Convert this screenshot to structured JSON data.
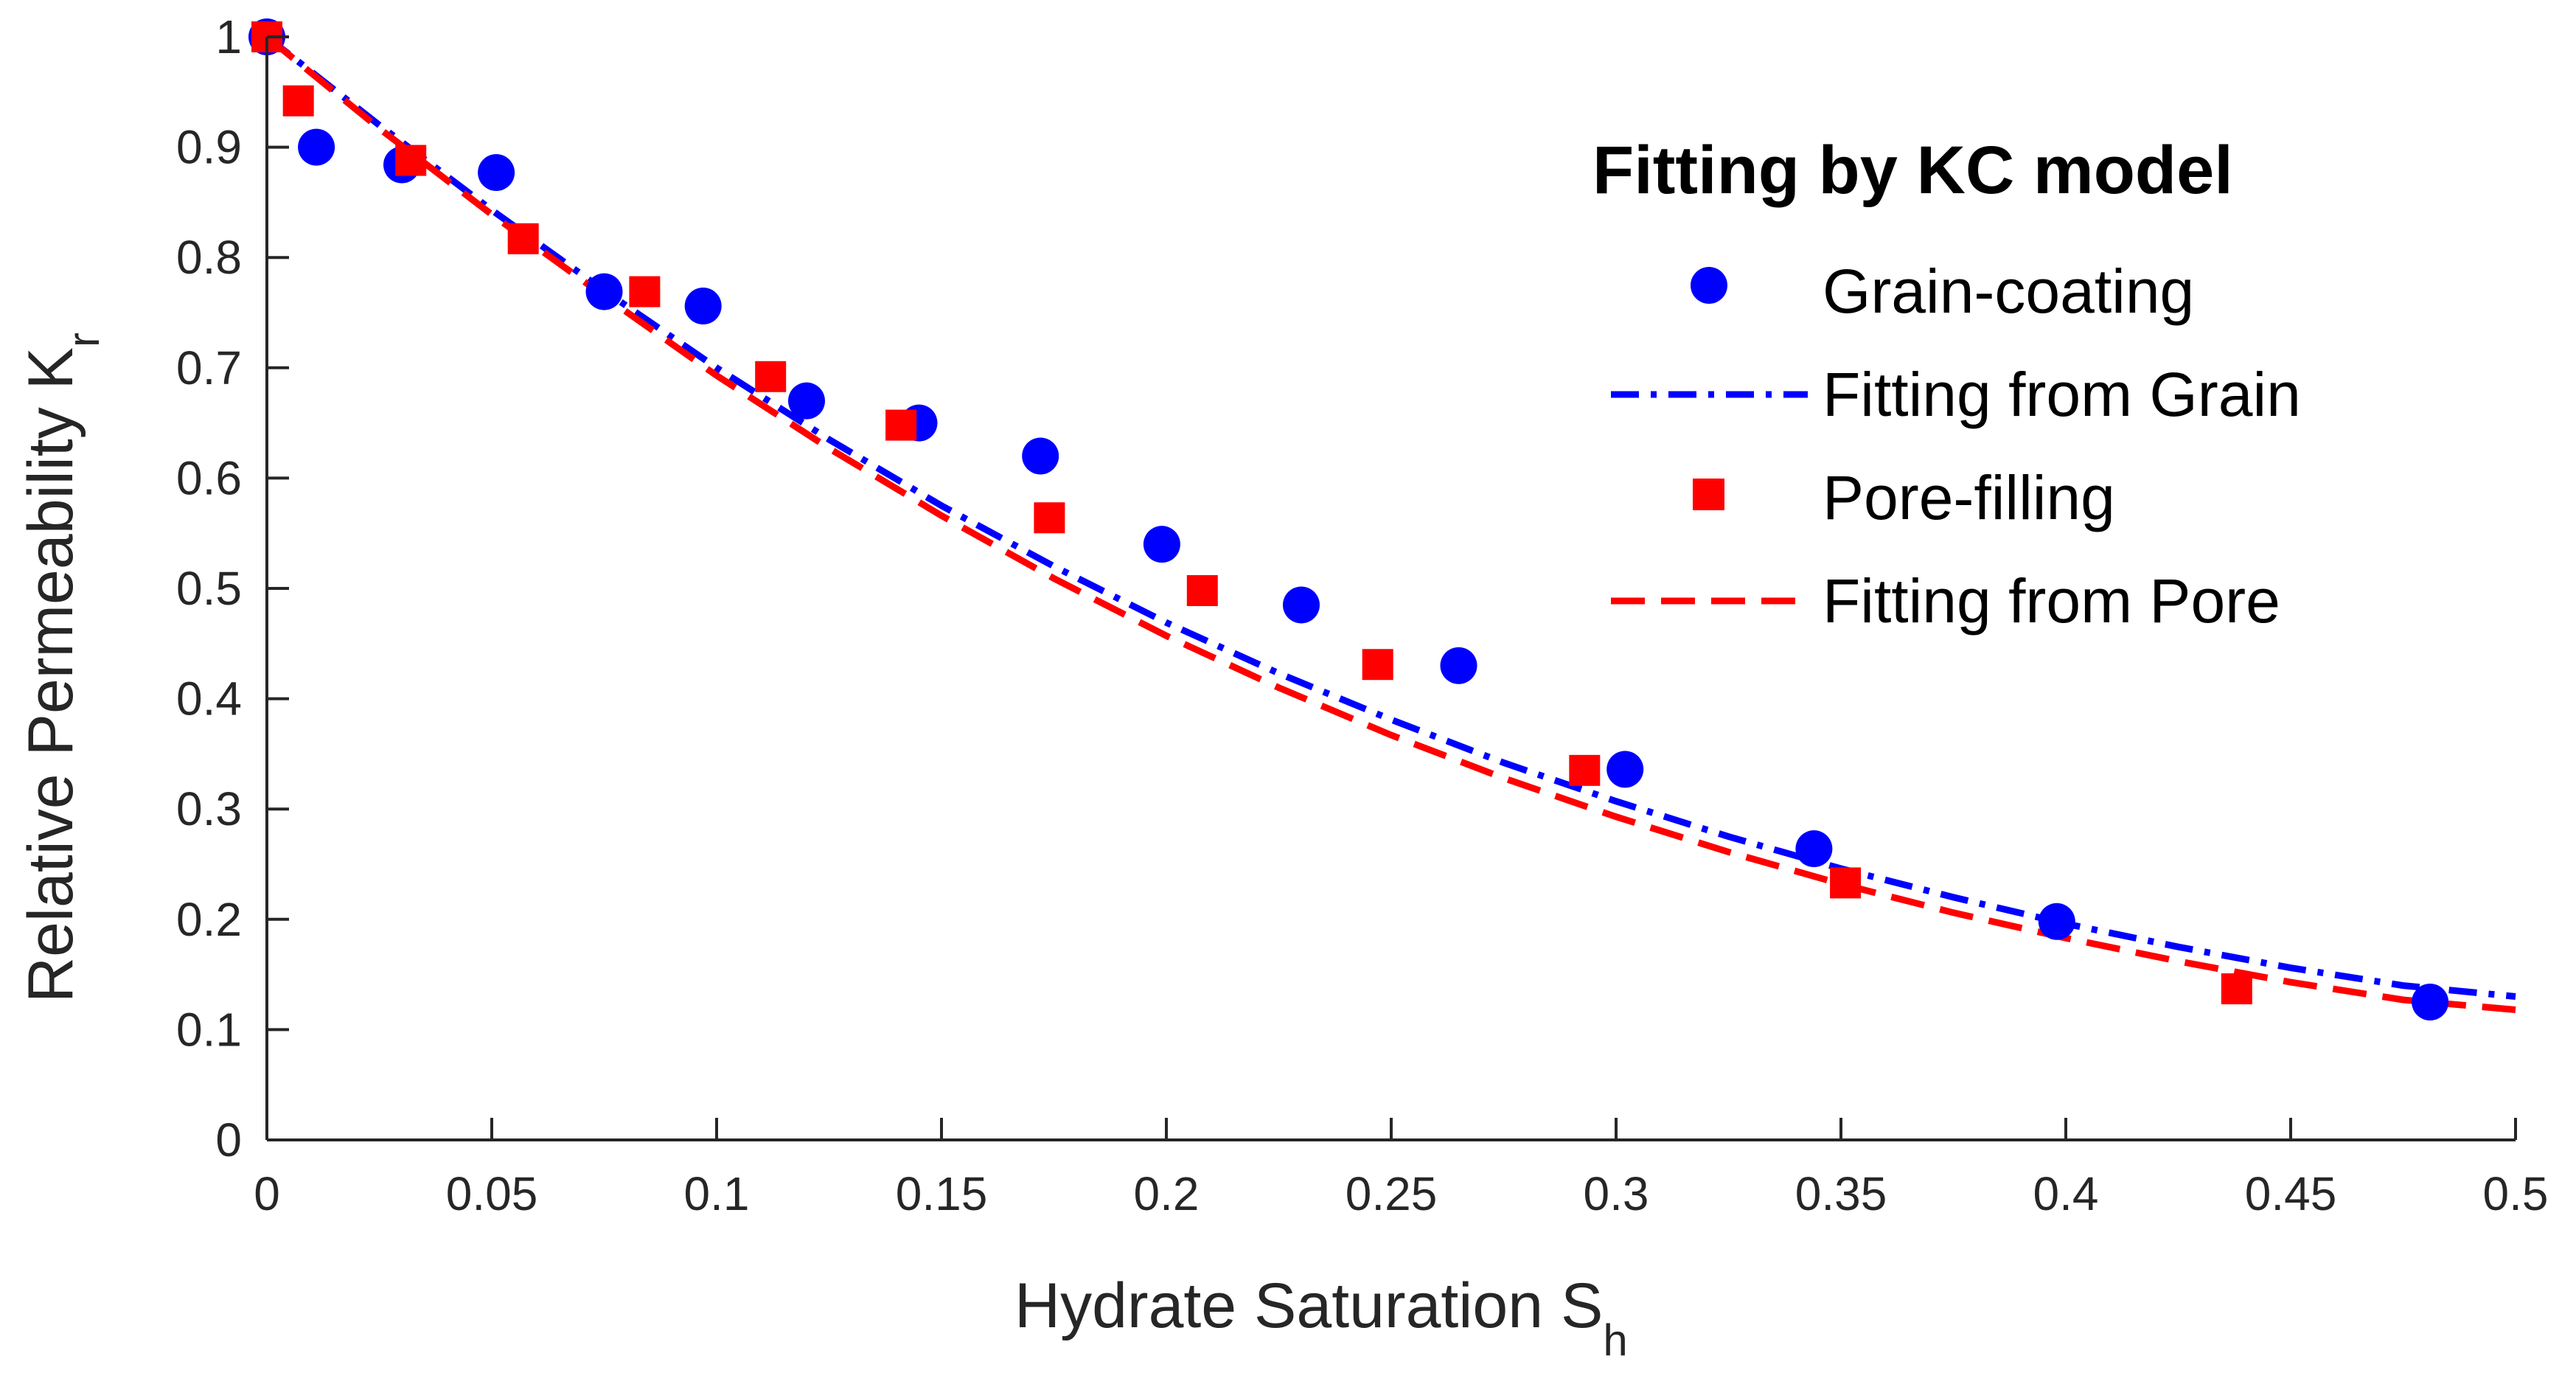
{
  "chart_data": {
    "type": "scatter",
    "xlabel": "Hydrate Saturation S",
    "xlabel_sub": "h",
    "ylabel": "Relative Permeability K",
    "ylabel_sub": "r",
    "xlim": [
      0,
      0.5
    ],
    "ylim": [
      0,
      1
    ],
    "x_ticks": [
      0,
      0.05,
      0.1,
      0.15,
      0.2,
      0.25,
      0.3,
      0.35,
      0.4,
      0.45,
      0.5
    ],
    "x_tick_labels": [
      "0",
      "0.05",
      "0.1",
      "0.15",
      "0.2",
      "0.25",
      "0.3",
      "0.35",
      "0.4",
      "0.45",
      "0.5"
    ],
    "y_ticks": [
      0,
      0.1,
      0.2,
      0.3,
      0.4,
      0.5,
      0.6,
      0.7,
      0.8,
      0.9,
      1
    ],
    "y_tick_labels": [
      "0",
      "0.1",
      "0.2",
      "0.3",
      "0.4",
      "0.5",
      "0.6",
      "0.7",
      "0.8",
      "0.9",
      "1"
    ],
    "grid": false,
    "legend": {
      "title": "Fitting by KC model",
      "position": "top-right"
    },
    "series": [
      {
        "name": "Grain-coating",
        "kind": "scatter",
        "marker": "circle",
        "color": "#0000FF",
        "x": [
          0.0,
          0.011,
          0.03,
          0.051,
          0.075,
          0.097,
          0.12,
          0.145,
          0.172,
          0.199,
          0.23,
          0.265,
          0.302,
          0.344,
          0.398,
          0.481
        ],
        "y": [
          1.0,
          0.9,
          0.884,
          0.877,
          0.769,
          0.756,
          0.67,
          0.65,
          0.62,
          0.54,
          0.485,
          0.43,
          0.336,
          0.264,
          0.198,
          0.125
        ]
      },
      {
        "name": "Fitting from Grain",
        "kind": "line",
        "dash": "dashdot",
        "color": "#0000FF",
        "x": [
          0,
          0.025,
          0.05,
          0.075,
          0.1,
          0.125,
          0.15,
          0.175,
          0.2,
          0.225,
          0.25,
          0.275,
          0.3,
          0.325,
          0.35,
          0.375,
          0.4,
          0.425,
          0.45,
          0.475,
          0.5
        ],
        "y": [
          1.0,
          0.92,
          0.843,
          0.77,
          0.7,
          0.635,
          0.575,
          0.52,
          0.469,
          0.423,
          0.381,
          0.342,
          0.307,
          0.275,
          0.246,
          0.22,
          0.196,
          0.175,
          0.156,
          0.14,
          0.13
        ]
      },
      {
        "name": "Pore-filling",
        "kind": "scatter",
        "marker": "square",
        "color": "#FF0000",
        "x": [
          0.0,
          0.007,
          0.032,
          0.057,
          0.084,
          0.112,
          0.141,
          0.174,
          0.208,
          0.247,
          0.293,
          0.351,
          0.438
        ],
        "y": [
          1.0,
          0.942,
          0.888,
          0.817,
          0.769,
          0.692,
          0.648,
          0.564,
          0.498,
          0.431,
          0.335,
          0.233,
          0.137
        ]
      },
      {
        "name": "Fitting from Pore",
        "kind": "line",
        "dash": "dashed",
        "color": "#FF0000",
        "x": [
          0,
          0.025,
          0.05,
          0.075,
          0.1,
          0.125,
          0.15,
          0.175,
          0.2,
          0.225,
          0.25,
          0.275,
          0.3,
          0.325,
          0.35,
          0.375,
          0.4,
          0.425,
          0.45,
          0.475,
          0.5
        ],
        "y": [
          1.0,
          0.917,
          0.839,
          0.765,
          0.693,
          0.627,
          0.566,
          0.509,
          0.457,
          0.41,
          0.367,
          0.328,
          0.293,
          0.261,
          0.232,
          0.206,
          0.183,
          0.162,
          0.143,
          0.127,
          0.118
        ]
      }
    ]
  }
}
